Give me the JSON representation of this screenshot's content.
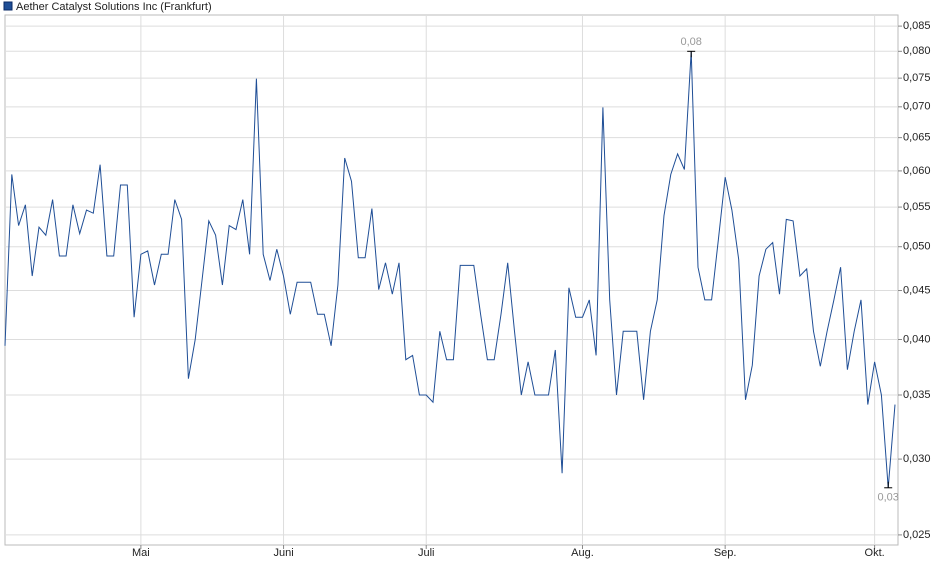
{
  "chart_data": {
    "type": "line",
    "series": [
      {
        "name": "Aether Catalyst Solutions Inc (Frankfurt)",
        "color": "#1f4e96",
        "values": [
          0.0394,
          0.0595,
          0.0526,
          0.0553,
          0.0466,
          0.0524,
          0.0514,
          0.056,
          0.0489,
          0.0489,
          0.0553,
          0.0516,
          0.0546,
          0.0542,
          0.0609,
          0.0489,
          0.0489,
          0.058,
          0.058,
          0.0422,
          0.0491,
          0.0495,
          0.0456,
          0.0491,
          0.0491,
          0.056,
          0.0534,
          0.0364,
          0.04,
          0.0461,
          0.0532,
          0.0514,
          0.0456,
          0.0526,
          0.0521,
          0.056,
          0.0491,
          0.0749,
          0.0491,
          0.0461,
          0.0497,
          0.0466,
          0.0425,
          0.0459,
          0.0459,
          0.0459,
          0.0425,
          0.0425,
          0.0394,
          0.0456,
          0.0619,
          0.0585,
          0.0487,
          0.0487,
          0.0548,
          0.0451,
          0.0481,
          0.0446,
          0.0481,
          0.0381,
          0.0385,
          0.035,
          0.035,
          0.0344,
          0.0408,
          0.0381,
          0.0381,
          0.0478,
          0.0478,
          0.0478,
          0.0425,
          0.0381,
          0.0381,
          0.0425,
          0.0481,
          0.0408,
          0.035,
          0.0379,
          0.035,
          0.035,
          0.035,
          0.039,
          0.029,
          0.0453,
          0.0422,
          0.0422,
          0.044,
          0.0385,
          0.0699,
          0.044,
          0.035,
          0.0408,
          0.0408,
          0.0408,
          0.0346,
          0.0408,
          0.044,
          0.0539,
          0.0595,
          0.0625,
          0.0602,
          0.08,
          0.0476,
          0.044,
          0.044,
          0.0509,
          0.0591,
          0.0546,
          0.0485,
          0.0346,
          0.0376,
          0.0466,
          0.0497,
          0.0505,
          0.0446,
          0.0534,
          0.0532,
          0.0466,
          0.0474,
          0.0408,
          0.0375,
          0.0408,
          0.044,
          0.0476,
          0.0372,
          0.0408,
          0.044,
          0.0342,
          0.0379,
          0.035,
          0.028,
          0.0342
        ]
      }
    ],
    "xlim": [
      0,
      131
    ],
    "xticks": [
      {
        "value": 20,
        "label": "Mai"
      },
      {
        "value": 41,
        "label": "Juni"
      },
      {
        "value": 62,
        "label": "Juli"
      },
      {
        "value": 85,
        "label": "Aug."
      },
      {
        "value": 106,
        "label": "Sep."
      },
      {
        "value": 128,
        "label": "Okt."
      }
    ],
    "ylim": [
      0.0244,
      0.0873
    ],
    "log_y": true,
    "yticks": [
      {
        "value": 0.025,
        "label": "0,025"
      },
      {
        "value": 0.03,
        "label": "0,030"
      },
      {
        "value": 0.035,
        "label": "0,035"
      },
      {
        "value": 0.04,
        "label": "0,040"
      },
      {
        "value": 0.045,
        "label": "0,045"
      },
      {
        "value": 0.05,
        "label": "0,050"
      },
      {
        "value": 0.055,
        "label": "0,055"
      },
      {
        "value": 0.06,
        "label": "0,060"
      },
      {
        "value": 0.065,
        "label": "0,065"
      },
      {
        "value": 0.07,
        "label": "0,070"
      },
      {
        "value": 0.075,
        "label": "0,075"
      },
      {
        "value": 0.08,
        "label": "0,080"
      },
      {
        "value": 0.085,
        "label": "0,085"
      }
    ],
    "grid": true,
    "annotations": [
      {
        "label": "0,08",
        "x": 101,
        "value": 0.08,
        "position": "above"
      },
      {
        "label": "0,03",
        "x": 130,
        "value": 0.028,
        "position": "below"
      }
    ]
  }
}
